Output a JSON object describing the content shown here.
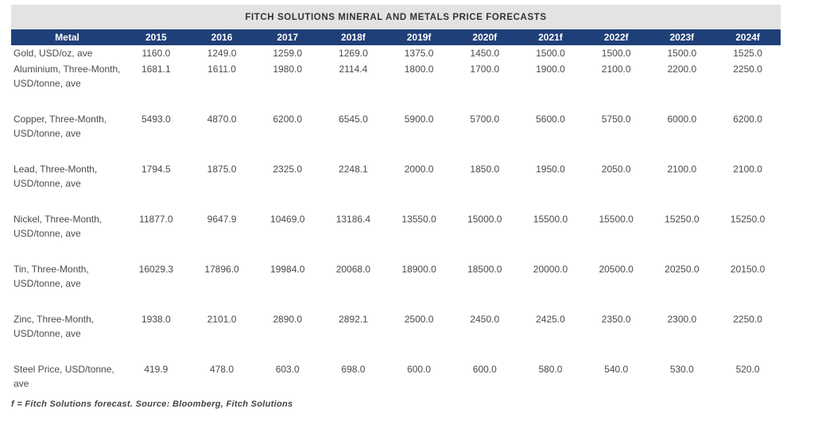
{
  "title": "FITCH SOLUTIONS MINERAL AND METALS PRICE FORECASTS",
  "colors": {
    "header_bg": "#1f3f78",
    "title_bg": "#e3e3e3"
  },
  "columns": [
    "Metal",
    "2015",
    "2016",
    "2017",
    "2018f",
    "2019f",
    "2020f",
    "2021f",
    "2022f",
    "2023f",
    "2024f"
  ],
  "rows": [
    {
      "metal": "Gold, USD/oz, ave",
      "values": [
        "1160.0",
        "1249.0",
        "1259.0",
        "1269.0",
        "1375.0",
        "1450.0",
        "1500.0",
        "1500.0",
        "1500.0",
        "1525.0"
      ]
    },
    {
      "metal": "Aluminium, Three-Month, USD/tonne, ave",
      "values": [
        "1681.1",
        "1611.0",
        "1980.0",
        "2114.4",
        "1800.0",
        "1700.0",
        "1900.0",
        "2100.0",
        "2200.0",
        "2250.0"
      ]
    },
    {
      "metal": "Copper, Three-Month, USD/tonne, ave",
      "values": [
        "5493.0",
        "4870.0",
        "6200.0",
        "6545.0",
        "5900.0",
        "5700.0",
        "5600.0",
        "5750.0",
        "6000.0",
        "6200.0"
      ]
    },
    {
      "metal": "Lead, Three-Month, USD/tonne, ave",
      "values": [
        "1794.5",
        "1875.0",
        "2325.0",
        "2248.1",
        "2000.0",
        "1850.0",
        "1950.0",
        "2050.0",
        "2100.0",
        "2100.0"
      ]
    },
    {
      "metal": "Nickel, Three-Month, USD/tonne, ave",
      "values": [
        "11877.0",
        "9647.9",
        "10469.0",
        "13186.4",
        "13550.0",
        "15000.0",
        "15500.0",
        "15500.0",
        "15250.0",
        "15250.0"
      ]
    },
    {
      "metal": "Tin, Three-Month, USD/tonne, ave",
      "values": [
        "16029.3",
        "17896.0",
        "19984.0",
        "20068.0",
        "18900.0",
        "18500.0",
        "20000.0",
        "20500.0",
        "20250.0",
        "20150.0"
      ]
    },
    {
      "metal": "Zinc, Three-Month, USD/tonne, ave",
      "values": [
        "1938.0",
        "2101.0",
        "2890.0",
        "2892.1",
        "2500.0",
        "2450.0",
        "2425.0",
        "2350.0",
        "2300.0",
        "2250.0"
      ]
    },
    {
      "metal": "Steel Price, USD/tonne, ave",
      "values": [
        "419.9",
        "478.0",
        "603.0",
        "698.0",
        "600.0",
        "600.0",
        "580.0",
        "540.0",
        "530.0",
        "520.0"
      ]
    }
  ],
  "footnote": "f = Fitch Solutions forecast. Source: Bloomberg, Fitch Solutions"
}
